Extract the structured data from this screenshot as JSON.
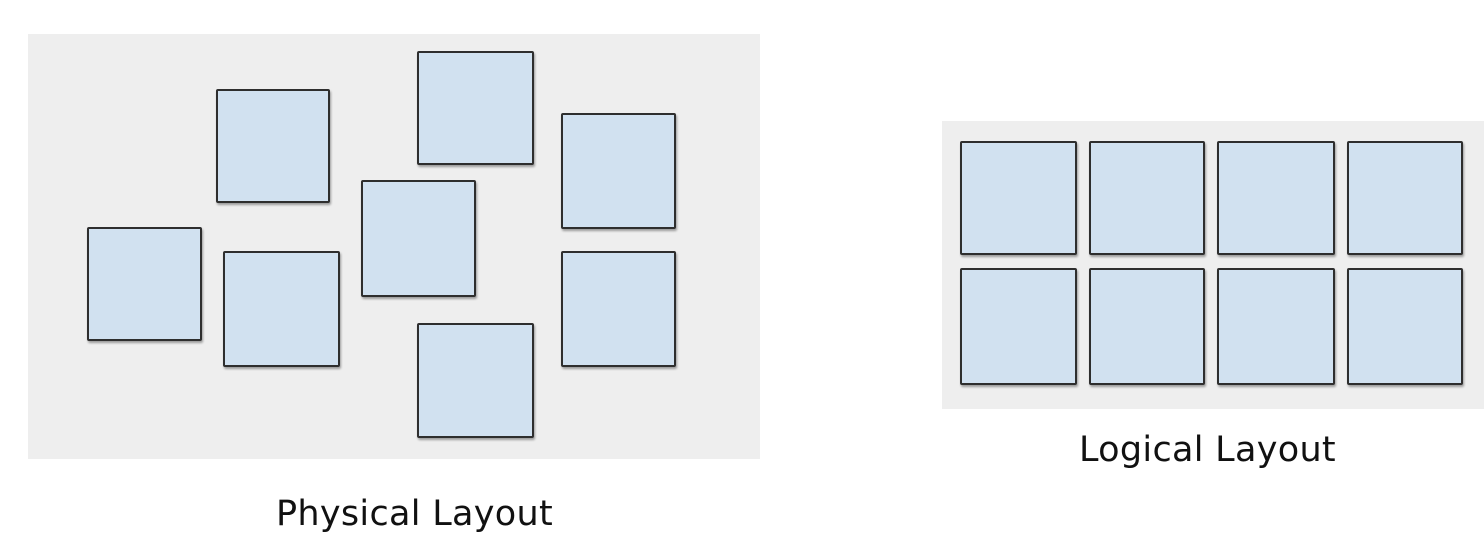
{
  "colors": {
    "panel_background": "#eeeeee",
    "tile_fill": "#d1e1f0",
    "tile_border": "#2e2e2e",
    "text": "#111111"
  },
  "physical": {
    "caption": "Physical Layout",
    "tile_count": 8,
    "arrangement": "scattered"
  },
  "logical": {
    "caption": "Logical Layout",
    "rows": 2,
    "columns": 4,
    "arrangement": "grid"
  }
}
